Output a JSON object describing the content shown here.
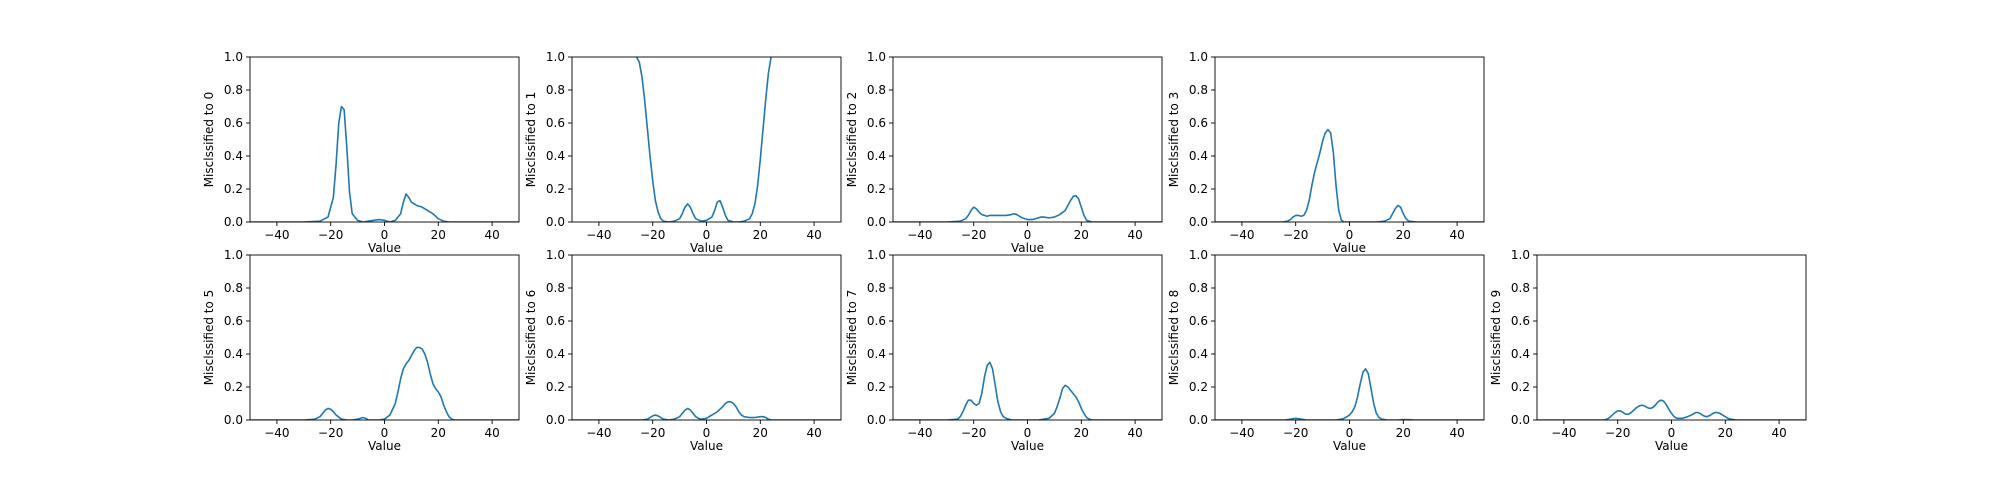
{
  "chart_data": [
    {
      "type": "line",
      "xlabel": "Value",
      "ylabel": "Misclssified to 0",
      "xlim": [
        -50,
        50
      ],
      "ylim": [
        0,
        1
      ],
      "xticks": [
        "−40",
        "−20",
        "0",
        "20",
        "40"
      ],
      "yticks": [
        "0.0",
        "0.2",
        "0.4",
        "0.6",
        "0.8",
        "1.0"
      ],
      "x": [
        -50,
        -30,
        -24,
        -21,
        -19,
        -18,
        -17,
        -16,
        -15,
        -14,
        -13,
        -12,
        -10,
        -8,
        -6,
        -4,
        -2,
        0,
        2,
        4,
        6,
        7,
        8,
        9,
        10,
        11,
        12,
        14,
        16,
        18,
        20,
        22,
        24,
        30,
        50
      ],
      "y": [
        0,
        0,
        0.005,
        0.03,
        0.15,
        0.35,
        0.6,
        0.7,
        0.68,
        0.45,
        0.18,
        0.05,
        0.01,
        0.0,
        0.005,
        0.01,
        0.015,
        0.01,
        0.0,
        0.01,
        0.05,
        0.12,
        0.17,
        0.15,
        0.12,
        0.11,
        0.1,
        0.09,
        0.07,
        0.05,
        0.02,
        0.005,
        0,
        0,
        0
      ],
      "color": "#1f77b4"
    },
    {
      "type": "line",
      "xlabel": "Value",
      "ylabel": "Misclssified to 1",
      "xlim": [
        -50,
        50
      ],
      "ylim": [
        0,
        1
      ],
      "xticks": [
        "−40",
        "−20",
        "0",
        "20",
        "40"
      ],
      "yticks": [
        "0.0",
        "0.2",
        "0.4",
        "0.6",
        "0.8",
        "1.0"
      ],
      "x": [
        -26,
        -25,
        -24,
        -23,
        -22,
        -21,
        -20,
        -19,
        -18,
        -17,
        -16,
        -14,
        -12,
        -10,
        -9,
        -8,
        -7,
        -6,
        -5,
        -4,
        -2,
        0,
        2,
        3,
        4,
        5,
        6,
        7,
        8,
        10,
        12,
        14,
        16,
        17,
        18,
        19,
        20,
        21,
        22,
        23,
        24
      ],
      "y": [
        1.0,
        0.97,
        0.88,
        0.74,
        0.57,
        0.4,
        0.25,
        0.13,
        0.06,
        0.02,
        0.005,
        0.0,
        0.005,
        0.02,
        0.05,
        0.09,
        0.11,
        0.09,
        0.05,
        0.02,
        0.005,
        0.01,
        0.03,
        0.07,
        0.12,
        0.13,
        0.09,
        0.04,
        0.01,
        0.0,
        0.0,
        0.005,
        0.02,
        0.05,
        0.11,
        0.22,
        0.38,
        0.56,
        0.74,
        0.9,
        1.0
      ],
      "color": "#1f77b4"
    },
    {
      "type": "line",
      "xlabel": "Value",
      "ylabel": "Misclssified to 2",
      "xlim": [
        -50,
        50
      ],
      "ylim": [
        0,
        1
      ],
      "xticks": [
        "−40",
        "−20",
        "0",
        "20",
        "40"
      ],
      "yticks": [
        "0.0",
        "0.2",
        "0.4",
        "0.6",
        "0.8",
        "1.0"
      ],
      "x": [
        -50,
        -30,
        -25,
        -23,
        -22,
        -21,
        -20,
        -19,
        -18,
        -17,
        -16,
        -15,
        -14,
        -12,
        -10,
        -8,
        -6,
        -5,
        -4,
        -2,
        0,
        2,
        4,
        5,
        6,
        8,
        10,
        12,
        14,
        15,
        16,
        17,
        18,
        19,
        20,
        21,
        22,
        24,
        30,
        50
      ],
      "y": [
        0,
        0,
        0.005,
        0.02,
        0.04,
        0.07,
        0.09,
        0.08,
        0.06,
        0.045,
        0.04,
        0.035,
        0.04,
        0.04,
        0.04,
        0.04,
        0.045,
        0.05,
        0.045,
        0.025,
        0.015,
        0.015,
        0.025,
        0.03,
        0.03,
        0.025,
        0.03,
        0.045,
        0.07,
        0.1,
        0.13,
        0.155,
        0.16,
        0.14,
        0.09,
        0.04,
        0.01,
        0,
        0,
        0
      ],
      "color": "#1f77b4"
    },
    {
      "type": "line",
      "xlabel": "Value",
      "ylabel": "Misclssified to 3",
      "xlim": [
        -50,
        50
      ],
      "ylim": [
        0,
        1
      ],
      "xticks": [
        "−40",
        "−20",
        "0",
        "20",
        "40"
      ],
      "yticks": [
        "0.0",
        "0.2",
        "0.4",
        "0.6",
        "0.8",
        "1.0"
      ],
      "x": [
        -50,
        -30,
        -25,
        -23,
        -22,
        -21,
        -20,
        -19,
        -18,
        -17,
        -16,
        -15,
        -14,
        -13,
        -12,
        -11,
        -10,
        -9,
        -8,
        -7,
        -6,
        -5,
        -4,
        -3,
        -2,
        0,
        5,
        10,
        13,
        15,
        16,
        17,
        18,
        19,
        20,
        21,
        22,
        25,
        30,
        50
      ],
      "y": [
        0,
        0,
        0.0,
        0.005,
        0.015,
        0.03,
        0.04,
        0.04,
        0.035,
        0.04,
        0.07,
        0.13,
        0.22,
        0.3,
        0.36,
        0.42,
        0.49,
        0.54,
        0.56,
        0.54,
        0.42,
        0.22,
        0.07,
        0.01,
        0.0,
        0,
        0,
        0,
        0.005,
        0.02,
        0.05,
        0.08,
        0.1,
        0.09,
        0.05,
        0.02,
        0.005,
        0,
        0,
        0
      ],
      "color": "#1f77b4"
    },
    {
      "type": "line",
      "xlabel": "Value",
      "ylabel": "Misclssified to 5",
      "xlim": [
        -50,
        50
      ],
      "ylim": [
        0,
        1
      ],
      "xticks": [
        "−40",
        "−20",
        "0",
        "20",
        "40"
      ],
      "yticks": [
        "0.0",
        "0.2",
        "0.4",
        "0.6",
        "0.8",
        "1.0"
      ],
      "x": [
        -50,
        -30,
        -26,
        -24,
        -23,
        -22,
        -21,
        -20,
        -19,
        -18,
        -16,
        -14,
        -12,
        -10,
        -9,
        -8,
        -7,
        -6,
        -4,
        -2,
        0,
        2,
        4,
        5,
        6,
        7,
        8,
        9,
        10,
        11,
        12,
        13,
        14,
        15,
        16,
        17,
        18,
        19,
        20,
        21,
        22,
        23,
        24,
        25,
        26,
        30,
        50
      ],
      "y": [
        0,
        0,
        0.005,
        0.02,
        0.04,
        0.06,
        0.07,
        0.065,
        0.05,
        0.03,
        0.005,
        0,
        0,
        0.005,
        0.01,
        0.015,
        0.01,
        0.0,
        0,
        0,
        0.005,
        0.03,
        0.1,
        0.17,
        0.25,
        0.31,
        0.34,
        0.36,
        0.39,
        0.42,
        0.44,
        0.44,
        0.43,
        0.4,
        0.35,
        0.28,
        0.22,
        0.19,
        0.17,
        0.14,
        0.09,
        0.05,
        0.02,
        0.005,
        0,
        0,
        0
      ],
      "color": "#1f77b4"
    },
    {
      "type": "line",
      "xlabel": "Value",
      "ylabel": "Misclssified to 6",
      "xlim": [
        -50,
        50
      ],
      "ylim": [
        0,
        1
      ],
      "xticks": [
        "−40",
        "−20",
        "0",
        "20",
        "40"
      ],
      "yticks": [
        "0.0",
        "0.2",
        "0.4",
        "0.6",
        "0.8",
        "1.0"
      ],
      "x": [
        -50,
        -30,
        -24,
        -22,
        -21,
        -20,
        -19,
        -18,
        -17,
        -16,
        -14,
        -12,
        -10,
        -9,
        -8,
        -7,
        -6,
        -5,
        -4,
        -3,
        -2,
        0,
        2,
        4,
        6,
        7,
        8,
        9,
        10,
        11,
        12,
        13,
        14,
        16,
        18,
        20,
        21,
        22,
        23,
        24,
        30,
        50
      ],
      "y": [
        0,
        0,
        0,
        0.005,
        0.015,
        0.025,
        0.03,
        0.025,
        0.015,
        0.005,
        0.0,
        0.005,
        0.02,
        0.04,
        0.06,
        0.07,
        0.06,
        0.04,
        0.02,
        0.01,
        0.005,
        0.01,
        0.03,
        0.05,
        0.08,
        0.1,
        0.11,
        0.11,
        0.1,
        0.08,
        0.05,
        0.03,
        0.02,
        0.015,
        0.015,
        0.02,
        0.02,
        0.015,
        0.005,
        0,
        0,
        0
      ],
      "color": "#1f77b4"
    },
    {
      "type": "line",
      "xlabel": "Value",
      "ylabel": "Misclssified to 7",
      "xlim": [
        -50,
        50
      ],
      "ylim": [
        0,
        1
      ],
      "xticks": [
        "−40",
        "−20",
        "0",
        "20",
        "40"
      ],
      "yticks": [
        "0.0",
        "0.2",
        "0.4",
        "0.6",
        "0.8",
        "1.0"
      ],
      "x": [
        -50,
        -30,
        -26,
        -25,
        -24,
        -23,
        -22,
        -21,
        -20,
        -19,
        -18,
        -17,
        -16,
        -15,
        -14,
        -13,
        -12,
        -11,
        -10,
        -9,
        -8,
        -7,
        -6,
        -4,
        -2,
        0,
        2,
        4,
        6,
        8,
        10,
        11,
        12,
        13,
        14,
        15,
        16,
        17,
        18,
        19,
        20,
        21,
        22,
        23,
        24,
        25,
        26,
        30,
        50
      ],
      "y": [
        0,
        0,
        0.005,
        0.02,
        0.05,
        0.09,
        0.12,
        0.12,
        0.1,
        0.09,
        0.1,
        0.16,
        0.26,
        0.33,
        0.35,
        0.31,
        0.21,
        0.11,
        0.05,
        0.02,
        0.01,
        0.005,
        0,
        0,
        0,
        0,
        0,
        0,
        0.005,
        0.01,
        0.04,
        0.08,
        0.13,
        0.19,
        0.21,
        0.2,
        0.18,
        0.16,
        0.14,
        0.11,
        0.07,
        0.04,
        0.015,
        0.005,
        0,
        0,
        0,
        0,
        0
      ],
      "color": "#1f77b4"
    },
    {
      "type": "line",
      "xlabel": "Value",
      "ylabel": "Misclssified to 8",
      "xlim": [
        -50,
        50
      ],
      "ylim": [
        0,
        1
      ],
      "xticks": [
        "−40",
        "−20",
        "0",
        "20",
        "40"
      ],
      "yticks": [
        "0.0",
        "0.2",
        "0.4",
        "0.6",
        "0.8",
        "1.0"
      ],
      "x": [
        -50,
        -30,
        -24,
        -22,
        -21,
        -20,
        -19,
        -18,
        -16,
        -12,
        -8,
        -5,
        -3,
        -2,
        -1,
        0,
        1,
        2,
        3,
        4,
        5,
        6,
        7,
        8,
        9,
        10,
        11,
        12,
        14,
        18,
        20,
        22,
        24,
        30,
        50
      ],
      "y": [
        0,
        0,
        0,
        0.005,
        0.008,
        0.01,
        0.008,
        0.005,
        0,
        0,
        0,
        0,
        0.005,
        0.01,
        0.02,
        0.03,
        0.05,
        0.08,
        0.14,
        0.22,
        0.29,
        0.31,
        0.28,
        0.19,
        0.1,
        0.04,
        0.015,
        0.005,
        0,
        0,
        0.003,
        0.002,
        0,
        0,
        0
      ],
      "color": "#1f77b4"
    },
    {
      "type": "line",
      "xlabel": "Value",
      "ylabel": "Misclssified to 9",
      "xlim": [
        -50,
        50
      ],
      "ylim": [
        0,
        1
      ],
      "xticks": [
        "−40",
        "−20",
        "0",
        "20",
        "40"
      ],
      "yticks": [
        "0.0",
        "0.2",
        "0.4",
        "0.6",
        "0.8",
        "1.0"
      ],
      "x": [
        -50,
        -30,
        -25,
        -24,
        -23,
        -22,
        -21,
        -20,
        -19,
        -18,
        -17,
        -16,
        -15,
        -14,
        -13,
        -12,
        -11,
        -10,
        -9,
        -8,
        -7,
        -6,
        -5,
        -4,
        -3,
        -2,
        -1,
        0,
        1,
        2,
        4,
        6,
        8,
        9,
        10,
        11,
        12,
        13,
        14,
        15,
        16,
        17,
        18,
        19,
        20,
        21,
        22,
        24,
        30,
        50
      ],
      "y": [
        0,
        0,
        0,
        0.005,
        0.015,
        0.03,
        0.045,
        0.055,
        0.055,
        0.045,
        0.035,
        0.035,
        0.045,
        0.06,
        0.075,
        0.085,
        0.09,
        0.085,
        0.075,
        0.07,
        0.075,
        0.09,
        0.11,
        0.12,
        0.115,
        0.095,
        0.065,
        0.04,
        0.02,
        0.01,
        0.01,
        0.02,
        0.035,
        0.045,
        0.045,
        0.035,
        0.025,
        0.02,
        0.025,
        0.035,
        0.045,
        0.045,
        0.04,
        0.03,
        0.02,
        0.01,
        0.005,
        0,
        0,
        0
      ],
      "color": "#1f77b4"
    }
  ]
}
